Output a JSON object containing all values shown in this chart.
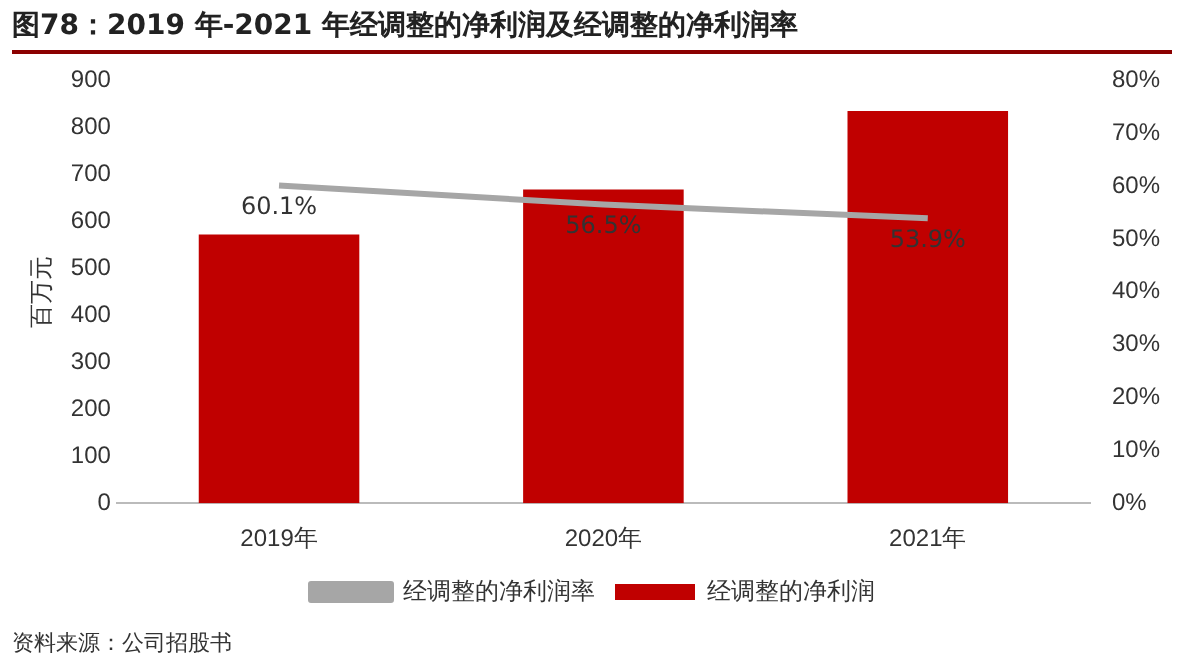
{
  "chart_data": {
    "type": "bar",
    "title": "图78：2019 年-2021 年经调整的净利润及经调整的净利润率",
    "ylabel": "百万元",
    "categories": [
      "2019年",
      "2020年",
      "2021年"
    ],
    "series": [
      {
        "name": "经调整的净利润",
        "color": "#c00000",
        "values": [
          572,
          668,
          835
        ]
      },
      {
        "name": "经调整的净利润率",
        "type": "line",
        "axis": "y2",
        "color": "#a6a6a6",
        "values": [
          60.1,
          56.5,
          53.9
        ],
        "value_labels": [
          "60.1%",
          "56.5%",
          "53.9%"
        ]
      }
    ],
    "ylim": [
      0,
      900
    ],
    "yticks": [
      0,
      100,
      200,
      300,
      400,
      500,
      600,
      700,
      800,
      900
    ],
    "y2lim": [
      0,
      80
    ],
    "y2ticks": [
      {
        "value": 0,
        "label": "0%"
      },
      {
        "value": 10,
        "label": "10%"
      },
      {
        "value": 20,
        "label": "20%"
      },
      {
        "value": 30,
        "label": "30%"
      },
      {
        "value": 40,
        "label": "40%"
      },
      {
        "value": 50,
        "label": "50%"
      },
      {
        "value": 60,
        "label": "60%"
      },
      {
        "value": 70,
        "label": "70%"
      },
      {
        "value": 80,
        "label": "80%"
      }
    ],
    "grid": false,
    "legend": "bottom",
    "marker": "none",
    "annotations": [
      "资料来源：公司招股书"
    ]
  }
}
